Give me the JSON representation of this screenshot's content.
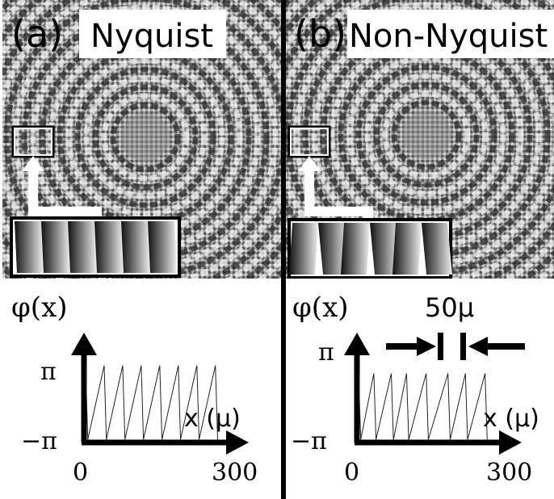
{
  "panels": [
    {
      "letter": "(a)",
      "title": "Nyquist",
      "ylabel": "φ(x)",
      "y_top": "π",
      "y_bottom": "−π",
      "xlabel": "x (μ)",
      "x_start": "0",
      "x_end": "300"
    },
    {
      "letter": "(b)",
      "title": "Non-Nyquist",
      "ylabel": "φ(x)",
      "y_top": "π",
      "y_bottom": "−π",
      "xlabel": "x (μ)",
      "x_start": "0",
      "x_end": "300",
      "annotation": "50μ"
    }
  ],
  "colors": {
    "background": "#ffffff",
    "ink": "#000000",
    "phase_gray": "#8a8a8a"
  },
  "chart_data": [
    {
      "type": "line",
      "panel": "a",
      "series": [
        {
          "x": [
            0,
            5,
            42,
            47,
            84,
            89,
            126,
            131,
            168,
            173,
            210,
            215,
            252,
            257,
            294,
            299
          ],
          "values": [
            3.1,
            -3.1,
            3.1,
            -3.1,
            3.1,
            -3.1,
            3.1,
            -3.1,
            3.1,
            -3.1,
            3.1,
            -3.1,
            3.1,
            -3.1,
            3.1,
            -3.1
          ]
        }
      ],
      "xlim": [
        0,
        300
      ],
      "ylim": [
        -3.1416,
        3.1416
      ]
    },
    {
      "type": "line",
      "panel": "b",
      "series": [
        {
          "x": [
            0,
            5,
            35,
            40,
            75,
            80,
            110,
            115,
            155,
            160,
            205,
            210,
            245,
            250,
            290,
            295
          ],
          "values": [
            3.1,
            -3.1,
            3.1,
            -3.1,
            3.1,
            -3.1,
            3.1,
            -3.1,
            3.1,
            -3.1,
            3.1,
            -3.1,
            3.1,
            -3.1,
            3.1,
            -3.1
          ]
        }
      ],
      "xlim": [
        0,
        300
      ],
      "ylim": [
        -3.1416,
        3.1416
      ]
    }
  ]
}
